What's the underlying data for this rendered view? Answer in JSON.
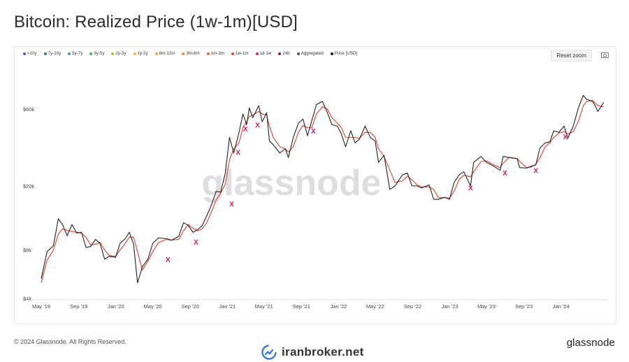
{
  "title": "Bitcoin: Realized Price (1w-1m)[USD]",
  "legend": [
    {
      "label": ">10y",
      "color": "#6a4fb3"
    },
    {
      "label": "7y-10y",
      "color": "#3b6fb0"
    },
    {
      "label": "5y-7y",
      "color": "#3fa1b5"
    },
    {
      "label": "3y-5y",
      "color": "#4cae6e"
    },
    {
      "label": "2y-3y",
      "color": "#a9c23a"
    },
    {
      "label": "1y-2y",
      "color": "#e1c335"
    },
    {
      "label": "6m-12m",
      "color": "#f0a733"
    },
    {
      "label": "3m-6m",
      "color": "#ef8a3a"
    },
    {
      "label": "1m-3m",
      "color": "#e86b3b"
    },
    {
      "label": "1w-1m",
      "color": "#e24c3c"
    },
    {
      "label": "1d-1w",
      "color": "#c83346"
    },
    {
      "label": "24h",
      "color": "#8e1d34"
    },
    {
      "label": "Aggregated",
      "color": "#555555"
    },
    {
      "label": "Price [USD]",
      "color": "#222222"
    }
  ],
  "reset_zoom_label": "Reset zoom",
  "watermark": "glassnode",
  "footer": {
    "copyright": "© 2024 Glassnode. All Rights Reserved.",
    "brand": "glassnode",
    "site": "iranbroker.net"
  },
  "chart_data": {
    "type": "line",
    "title": "Bitcoin: Realized Price (1w-1m)[USD]",
    "y_scale": "log",
    "ylim": [
      4000,
      100000
    ],
    "y_ticks": [
      {
        "value": 4000,
        "label": "$4k"
      },
      {
        "value": 8000,
        "label": "$8k"
      },
      {
        "value": 20000,
        "label": "$20k"
      },
      {
        "value": 60000,
        "label": "$60k"
      }
    ],
    "xlim": [
      "2019-05-01",
      "2024-05-25"
    ],
    "x_ticks": [
      {
        "date": "2019-05-01",
        "label": "May '19"
      },
      {
        "date": "2019-09-01",
        "label": "Sep '19"
      },
      {
        "date": "2020-01-01",
        "label": "Jan '20"
      },
      {
        "date": "2020-05-01",
        "label": "May '20"
      },
      {
        "date": "2020-09-01",
        "label": "Sep '20"
      },
      {
        "date": "2021-01-01",
        "label": "Jan '21"
      },
      {
        "date": "2021-05-01",
        "label": "May '21"
      },
      {
        "date": "2021-09-01",
        "label": "Sep '21"
      },
      {
        "date": "2022-01-01",
        "label": "Jan '22"
      },
      {
        "date": "2022-05-01",
        "label": "May '22"
      },
      {
        "date": "2022-09-01",
        "label": "Sep '22"
      },
      {
        "date": "2023-01-01",
        "label": "Jan '23"
      },
      {
        "date": "2023-05-01",
        "label": "May '23"
      },
      {
        "date": "2023-09-01",
        "label": "Sep '23"
      },
      {
        "date": "2024-01-01",
        "label": "Jan '24"
      }
    ],
    "grid": false,
    "series": [
      {
        "name": "Price [USD]",
        "color": "#222222",
        "points": [
          [
            "2019-05-01",
            5300
          ],
          [
            "2019-05-20",
            7800
          ],
          [
            "2019-06-10",
            8500
          ],
          [
            "2019-06-26",
            12500
          ],
          [
            "2019-07-10",
            11500
          ],
          [
            "2019-07-25",
            9800
          ],
          [
            "2019-08-10",
            11500
          ],
          [
            "2019-08-25",
            10200
          ],
          [
            "2019-09-10",
            10300
          ],
          [
            "2019-09-25",
            8300
          ],
          [
            "2019-10-10",
            8400
          ],
          [
            "2019-10-26",
            9300
          ],
          [
            "2019-11-10",
            8800
          ],
          [
            "2019-11-25",
            7000
          ],
          [
            "2019-12-10",
            7300
          ],
          [
            "2019-12-31",
            7200
          ],
          [
            "2020-01-15",
            8800
          ],
          [
            "2020-02-01",
            9400
          ],
          [
            "2020-02-14",
            10300
          ],
          [
            "2020-02-28",
            8700
          ],
          [
            "2020-03-12",
            5000
          ],
          [
            "2020-03-28",
            6300
          ],
          [
            "2020-04-15",
            7000
          ],
          [
            "2020-05-01",
            8800
          ],
          [
            "2020-05-20",
            9500
          ],
          [
            "2020-06-15",
            9400
          ],
          [
            "2020-07-01",
            9200
          ],
          [
            "2020-07-25",
            9700
          ],
          [
            "2020-08-10",
            11800
          ],
          [
            "2020-08-25",
            11400
          ],
          [
            "2020-09-10",
            10300
          ],
          [
            "2020-09-25",
            10700
          ],
          [
            "2020-10-10",
            11300
          ],
          [
            "2020-10-25",
            13000
          ],
          [
            "2020-11-10",
            15300
          ],
          [
            "2020-11-25",
            18500
          ],
          [
            "2020-12-10",
            18300
          ],
          [
            "2020-12-25",
            24000
          ],
          [
            "2021-01-08",
            40000
          ],
          [
            "2021-01-22",
            32000
          ],
          [
            "2021-02-08",
            43000
          ],
          [
            "2021-02-21",
            56000
          ],
          [
            "2021-03-05",
            48000
          ],
          [
            "2021-03-14",
            61000
          ],
          [
            "2021-03-25",
            53000
          ],
          [
            "2021-04-14",
            63000
          ],
          [
            "2021-04-25",
            50000
          ],
          [
            "2021-05-10",
            57000
          ],
          [
            "2021-05-19",
            38000
          ],
          [
            "2021-06-01",
            36000
          ],
          [
            "2021-06-22",
            32000
          ],
          [
            "2021-07-10",
            34000
          ],
          [
            "2021-07-20",
            30000
          ],
          [
            "2021-08-05",
            40000
          ],
          [
            "2021-08-22",
            49000
          ],
          [
            "2021-09-06",
            52000
          ],
          [
            "2021-09-21",
            41000
          ],
          [
            "2021-10-05",
            51000
          ],
          [
            "2021-10-20",
            64000
          ],
          [
            "2021-11-09",
            67000
          ],
          [
            "2021-11-25",
            57000
          ],
          [
            "2021-12-10",
            48000
          ],
          [
            "2021-12-28",
            47000
          ],
          [
            "2022-01-10",
            42000
          ],
          [
            "2022-01-24",
            35000
          ],
          [
            "2022-02-10",
            44000
          ],
          [
            "2022-02-24",
            37000
          ],
          [
            "2022-03-10",
            39000
          ],
          [
            "2022-03-29",
            47000
          ],
          [
            "2022-04-15",
            40000
          ],
          [
            "2022-05-01",
            38000
          ],
          [
            "2022-05-12",
            28000
          ],
          [
            "2022-05-30",
            31000
          ],
          [
            "2022-06-18",
            19000
          ],
          [
            "2022-07-05",
            20000
          ],
          [
            "2022-07-30",
            23500
          ],
          [
            "2022-08-15",
            24000
          ],
          [
            "2022-08-30",
            20000
          ],
          [
            "2022-09-15",
            20000
          ],
          [
            "2022-10-01",
            19400
          ],
          [
            "2022-10-25",
            20300
          ],
          [
            "2022-11-09",
            16500
          ],
          [
            "2022-11-25",
            16500
          ],
          [
            "2022-12-15",
            17000
          ],
          [
            "2022-12-31",
            16500
          ],
          [
            "2023-01-15",
            21000
          ],
          [
            "2023-02-01",
            23500
          ],
          [
            "2023-02-16",
            24500
          ],
          [
            "2023-03-10",
            20000
          ],
          [
            "2023-03-20",
            28000
          ],
          [
            "2023-04-13",
            30500
          ],
          [
            "2023-05-01",
            28000
          ],
          [
            "2023-05-25",
            26500
          ],
          [
            "2023-06-15",
            25000
          ],
          [
            "2023-06-25",
            30500
          ],
          [
            "2023-07-15",
            30000
          ],
          [
            "2023-08-10",
            29500
          ],
          [
            "2023-08-18",
            26000
          ],
          [
            "2023-09-10",
            25800
          ],
          [
            "2023-09-25",
            26500
          ],
          [
            "2023-10-10",
            27000
          ],
          [
            "2023-10-24",
            34500
          ],
          [
            "2023-11-10",
            37000
          ],
          [
            "2023-11-25",
            37500
          ],
          [
            "2023-12-08",
            44000
          ],
          [
            "2023-12-25",
            43000
          ],
          [
            "2024-01-11",
            47000
          ],
          [
            "2024-01-23",
            39500
          ],
          [
            "2024-02-10",
            47000
          ],
          [
            "2024-02-28",
            62000
          ],
          [
            "2024-03-14",
            73000
          ],
          [
            "2024-03-25",
            69000
          ],
          [
            "2024-04-13",
            67000
          ],
          [
            "2024-04-20",
            64000
          ],
          [
            "2024-05-01",
            58000
          ],
          [
            "2024-05-20",
            66000
          ]
        ]
      },
      {
        "name": "1w-1m",
        "color": "#e24c3c",
        "points": [
          [
            "2019-05-01",
            5000
          ],
          [
            "2019-05-20",
            6900
          ],
          [
            "2019-06-10",
            8000
          ],
          [
            "2019-06-26",
            10000
          ],
          [
            "2019-07-10",
            10800
          ],
          [
            "2019-07-25",
            10600
          ],
          [
            "2019-08-10",
            10400
          ],
          [
            "2019-08-25",
            10300
          ],
          [
            "2019-09-10",
            10200
          ],
          [
            "2019-09-25",
            9600
          ],
          [
            "2019-10-10",
            8600
          ],
          [
            "2019-10-26",
            8700
          ],
          [
            "2019-11-10",
            8900
          ],
          [
            "2019-11-25",
            8000
          ],
          [
            "2019-12-10",
            7400
          ],
          [
            "2019-12-31",
            7300
          ],
          [
            "2020-01-15",
            8000
          ],
          [
            "2020-02-01",
            8800
          ],
          [
            "2020-02-14",
            9600
          ],
          [
            "2020-02-28",
            9600
          ],
          [
            "2020-03-12",
            7800
          ],
          [
            "2020-03-28",
            6000
          ],
          [
            "2020-04-15",
            6800
          ],
          [
            "2020-05-01",
            7800
          ],
          [
            "2020-05-20",
            8900
          ],
          [
            "2020-06-15",
            9300
          ],
          [
            "2020-07-01",
            9200
          ],
          [
            "2020-07-25",
            9300
          ],
          [
            "2020-08-10",
            10500
          ],
          [
            "2020-08-25",
            11500
          ],
          [
            "2020-09-10",
            10900
          ],
          [
            "2020-09-25",
            10500
          ],
          [
            "2020-10-10",
            10800
          ],
          [
            "2020-10-25",
            11800
          ],
          [
            "2020-11-10",
            13800
          ],
          [
            "2020-11-25",
            16400
          ],
          [
            "2020-12-10",
            18000
          ],
          [
            "2020-12-25",
            20500
          ],
          [
            "2021-01-08",
            29000
          ],
          [
            "2021-01-22",
            34000
          ],
          [
            "2021-02-08",
            37000
          ],
          [
            "2021-02-21",
            46000
          ],
          [
            "2021-03-05",
            50000
          ],
          [
            "2021-03-14",
            54000
          ],
          [
            "2021-03-25",
            55000
          ],
          [
            "2021-04-14",
            58000
          ],
          [
            "2021-04-25",
            56000
          ],
          [
            "2021-05-10",
            55000
          ],
          [
            "2021-05-19",
            47000
          ],
          [
            "2021-06-01",
            40000
          ],
          [
            "2021-06-22",
            35000
          ],
          [
            "2021-07-10",
            34000
          ],
          [
            "2021-07-20",
            32500
          ],
          [
            "2021-08-05",
            35000
          ],
          [
            "2021-08-22",
            43000
          ],
          [
            "2021-09-06",
            47500
          ],
          [
            "2021-09-21",
            46000
          ],
          [
            "2021-10-05",
            46000
          ],
          [
            "2021-10-20",
            56000
          ],
          [
            "2021-11-09",
            62000
          ],
          [
            "2021-11-25",
            60000
          ],
          [
            "2021-12-10",
            53000
          ],
          [
            "2021-12-28",
            49000
          ],
          [
            "2022-01-10",
            46000
          ],
          [
            "2022-01-24",
            40000
          ],
          [
            "2022-02-10",
            40000
          ],
          [
            "2022-02-24",
            40000
          ],
          [
            "2022-03-10",
            39500
          ],
          [
            "2022-03-29",
            43000
          ],
          [
            "2022-04-15",
            43000
          ],
          [
            "2022-05-01",
            40000
          ],
          [
            "2022-05-12",
            34000
          ],
          [
            "2022-05-30",
            30500
          ],
          [
            "2022-06-18",
            25000
          ],
          [
            "2022-07-05",
            21000
          ],
          [
            "2022-07-30",
            21500
          ],
          [
            "2022-08-15",
            23000
          ],
          [
            "2022-08-30",
            21800
          ],
          [
            "2022-09-15",
            20300
          ],
          [
            "2022-10-01",
            19700
          ],
          [
            "2022-10-25",
            19700
          ],
          [
            "2022-11-09",
            19000
          ],
          [
            "2022-11-25",
            16900
          ],
          [
            "2022-12-15",
            16900
          ],
          [
            "2022-12-31",
            16800
          ],
          [
            "2023-01-15",
            18500
          ],
          [
            "2023-02-01",
            22000
          ],
          [
            "2023-02-16",
            23300
          ],
          [
            "2023-03-10",
            22800
          ],
          [
            "2023-03-20",
            24500
          ],
          [
            "2023-04-13",
            28300
          ],
          [
            "2023-05-01",
            28600
          ],
          [
            "2023-05-25",
            27000
          ],
          [
            "2023-06-15",
            26000
          ],
          [
            "2023-06-25",
            27600
          ],
          [
            "2023-07-15",
            30100
          ],
          [
            "2023-08-10",
            29600
          ],
          [
            "2023-08-18",
            28400
          ],
          [
            "2023-09-10",
            26000
          ],
          [
            "2023-09-25",
            26200
          ],
          [
            "2023-10-10",
            27200
          ],
          [
            "2023-10-24",
            30000
          ],
          [
            "2023-11-10",
            35000
          ],
          [
            "2023-11-25",
            37000
          ],
          [
            "2023-12-08",
            40000
          ],
          [
            "2023-12-25",
            42500
          ],
          [
            "2024-01-11",
            43500
          ],
          [
            "2024-01-23",
            42000
          ],
          [
            "2024-02-10",
            43500
          ],
          [
            "2024-02-28",
            51000
          ],
          [
            "2024-03-14",
            63000
          ],
          [
            "2024-03-25",
            67000
          ],
          [
            "2024-04-13",
            68000
          ],
          [
            "2024-04-20",
            66000
          ],
          [
            "2024-05-01",
            63000
          ],
          [
            "2024-05-20",
            62000
          ]
        ]
      }
    ],
    "annotations": {
      "marker": "X",
      "color": "#e0185f",
      "points": [
        [
          "2020-06-20",
          7000
        ],
        [
          "2020-09-20",
          9000
        ],
        [
          "2021-01-15",
          15500
        ],
        [
          "2021-02-05",
          32500
        ],
        [
          "2021-03-01",
          45500
        ],
        [
          "2021-04-10",
          48000
        ],
        [
          "2021-10-10",
          44000
        ],
        [
          "2023-03-10",
          19500
        ],
        [
          "2023-07-01",
          24200
        ],
        [
          "2023-10-10",
          25000
        ],
        [
          "2024-01-15",
          40500
        ]
      ]
    }
  }
}
